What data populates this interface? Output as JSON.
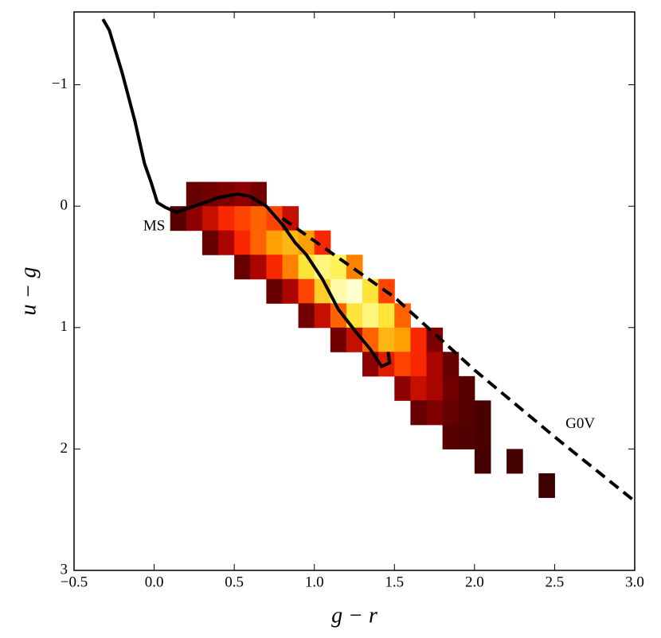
{
  "chart_data": {
    "type": "hist2d",
    "xlabel": "g − r",
    "ylabel": "u − g",
    "xlim": [
      -0.5,
      3.0
    ],
    "ylim": [
      -1.6,
      3
    ],
    "y_inverted": true,
    "xticks": [
      {
        "value": -0.5,
        "label": "−0.5"
      },
      {
        "value": 0,
        "label": "0.0"
      },
      {
        "value": 0.5,
        "label": "0.5"
      },
      {
        "value": 1,
        "label": "1.0"
      },
      {
        "value": 1.5,
        "label": "1.5"
      },
      {
        "value": 2,
        "label": "2.0"
      },
      {
        "value": 2.5,
        "label": "2.5"
      },
      {
        "value": 3,
        "label": "3.0"
      }
    ],
    "yticks": [
      {
        "value": -1,
        "label": "−1"
      },
      0,
      1,
      2,
      3
    ],
    "cell_size": [
      0.1,
      0.2
    ],
    "cmap": [
      "#3a0000",
      "#a00000",
      "#ff2a00",
      "#ff9a00",
      "#ffee40",
      "#ffffd0"
    ],
    "cells": {
      "x": [
        0.15,
        0.25,
        0.25,
        0.35,
        0.35,
        0.35,
        0.45,
        0.45,
        0.45,
        0.55,
        0.55,
        0.55,
        0.55,
        0.65,
        0.65,
        0.65,
        0.65,
        0.75,
        0.75,
        0.75,
        0.75,
        0.85,
        0.85,
        0.85,
        0.85,
        0.95,
        0.95,
        0.95,
        0.95,
        1.05,
        1.05,
        1.05,
        1.05,
        1.15,
        1.15,
        1.15,
        1.15,
        1.25,
        1.25,
        1.25,
        1.25,
        1.35,
        1.35,
        1.35,
        1.35,
        1.45,
        1.45,
        1.45,
        1.45,
        1.55,
        1.55,
        1.55,
        1.55,
        1.65,
        1.65,
        1.65,
        1.65,
        1.75,
        1.75,
        1.75,
        1.75,
        1.85,
        1.85,
        1.85,
        1.85,
        1.95,
        1.95,
        1.95,
        2.05,
        2.05,
        2.05,
        2.25,
        2.45
      ],
      "y": [
        0.1,
        -0.1,
        0.1,
        -0.1,
        0.1,
        0.3,
        -0.1,
        0.1,
        0.3,
        -0.1,
        0.1,
        0.3,
        0.5,
        -0.1,
        0.1,
        0.3,
        0.5,
        0.1,
        0.3,
        0.5,
        0.7,
        0.1,
        0.3,
        0.5,
        0.7,
        0.3,
        0.5,
        0.7,
        0.9,
        0.3,
        0.5,
        0.7,
        0.9,
        0.5,
        0.7,
        0.9,
        1.1,
        0.5,
        0.7,
        0.9,
        1.1,
        0.7,
        0.9,
        1.1,
        1.3,
        0.7,
        0.9,
        1.1,
        1.3,
        0.9,
        1.1,
        1.3,
        1.5,
        1.1,
        1.3,
        1.5,
        1.7,
        1.1,
        1.3,
        1.5,
        1.7,
        1.3,
        1.5,
        1.7,
        1.9,
        1.5,
        1.7,
        1.9,
        1.7,
        1.9,
        2.1,
        2.1,
        2.3
      ],
      "counts": [
        5,
        8,
        15,
        10,
        25,
        8,
        12,
        35,
        20,
        15,
        40,
        35,
        8,
        10,
        45,
        45,
        20,
        40,
        55,
        35,
        8,
        25,
        60,
        50,
        20,
        55,
        70,
        40,
        10,
        35,
        80,
        65,
        25,
        75,
        85,
        45,
        10,
        50,
        90,
        70,
        25,
        70,
        80,
        45,
        15,
        40,
        70,
        60,
        30,
        45,
        55,
        40,
        15,
        35,
        35,
        25,
        8,
        12,
        20,
        20,
        12,
        8,
        10,
        8,
        5,
        5,
        5,
        4,
        3,
        3,
        2,
        2,
        1
      ]
    },
    "lines": [
      {
        "style": "solid",
        "color": "#000000",
        "x": [
          -0.32,
          -0.28,
          -0.2,
          -0.12,
          -0.06,
          -0.02,
          0.02,
          0.07,
          0.14,
          0.25,
          0.4,
          0.52,
          0.6,
          0.7,
          0.8,
          0.88,
          0.95,
          1.05,
          1.15,
          1.25,
          1.35,
          1.42,
          1.47,
          1.46
        ],
        "y": [
          -1.54,
          -1.45,
          -1.1,
          -0.7,
          -0.35,
          -0.2,
          -0.03,
          0.01,
          0.05,
          0.0,
          -0.07,
          -0.1,
          -0.08,
          0.0,
          0.15,
          0.3,
          0.4,
          0.6,
          0.85,
          1.02,
          1.18,
          1.32,
          1.29,
          1.2
        ]
      },
      {
        "style": "dashed",
        "color": "#000000",
        "x": [
          0.8,
          1.5,
          2.0,
          2.5,
          3.0
        ],
        "y": [
          0.1,
          0.75,
          1.35,
          1.9,
          2.43
        ]
      }
    ],
    "annotations": [
      {
        "text": "MS",
        "x": 0.0,
        "y": 0.17
      },
      {
        "text": "G0V",
        "x": 2.66,
        "y": 1.8
      }
    ]
  }
}
